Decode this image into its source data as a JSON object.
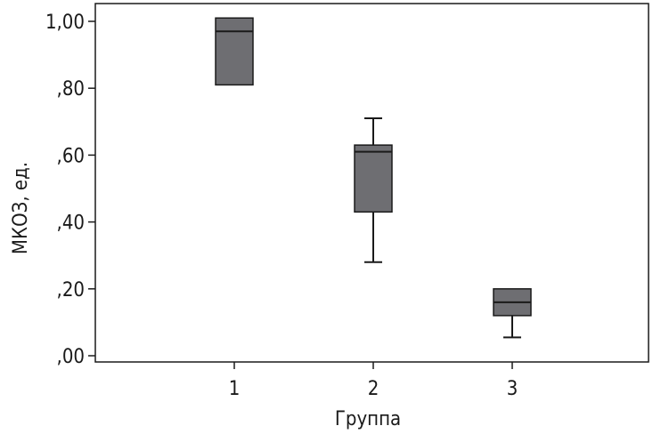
{
  "chart_data": {
    "type": "box",
    "xlabel": "Группа",
    "ylabel": "МКОЗ, ед.",
    "ylim": [
      0,
      1.0
    ],
    "y_ticks": [
      {
        "value": 0.0,
        "label": ",00"
      },
      {
        "value": 0.2,
        "label": ",20"
      },
      {
        "value": 0.4,
        "label": ",40"
      },
      {
        "value": 0.6,
        "label": ",60"
      },
      {
        "value": 0.8,
        "label": ",80"
      },
      {
        "value": 1.0,
        "label": "1,00"
      }
    ],
    "categories": [
      "1",
      "2",
      "3"
    ],
    "boxes": [
      {
        "category": "1",
        "whisker_low": 0.81,
        "q1": 0.81,
        "median": 0.97,
        "q3": 1.01,
        "whisker_high": 1.01
      },
      {
        "category": "2",
        "whisker_low": 0.28,
        "q1": 0.43,
        "median": 0.61,
        "q3": 0.63,
        "whisker_high": 0.71
      },
      {
        "category": "3",
        "whisker_low": 0.055,
        "q1": 0.12,
        "median": 0.16,
        "q3": 0.2,
        "whisker_high": 0.2
      }
    ],
    "colors": {
      "box_fill": "#6e6e72",
      "stroke": "#1a1a1a",
      "plot_bg": "#ffffff"
    },
    "grid": false,
    "legend": "none"
  }
}
